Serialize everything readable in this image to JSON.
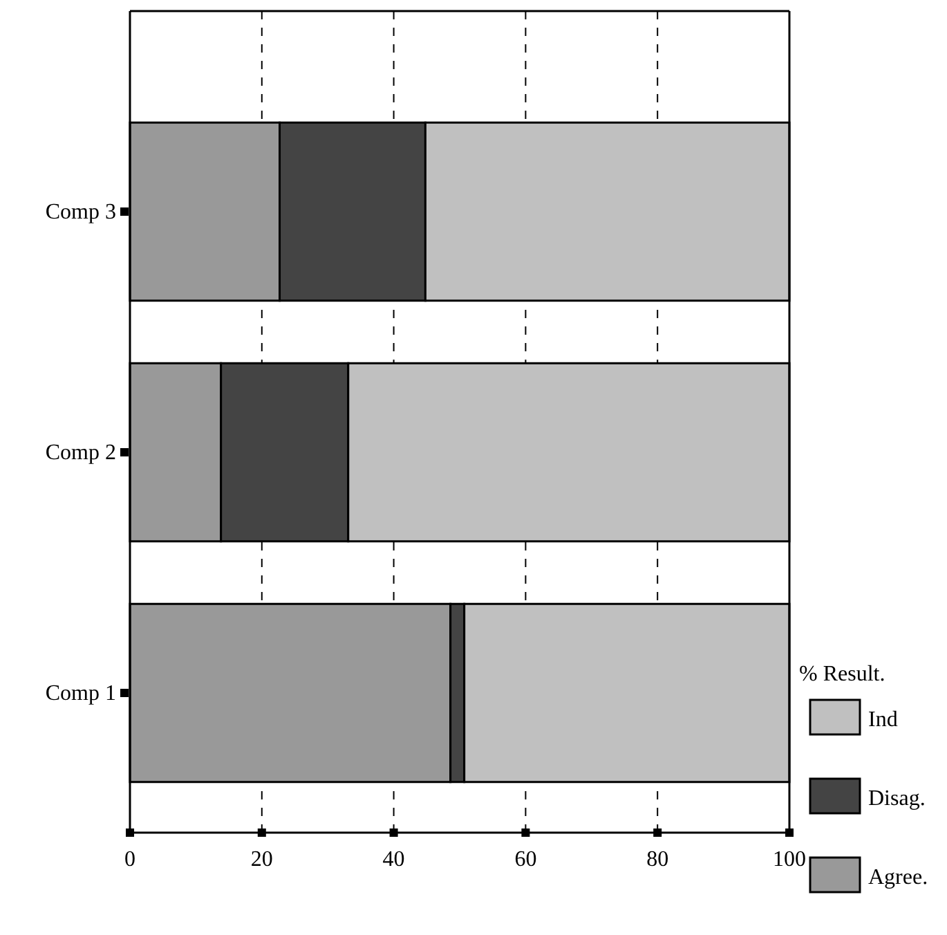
{
  "chart_data": {
    "type": "bar",
    "orientation": "horizontal",
    "stacked": true,
    "categories": [
      "Comp 3",
      "Comp 2",
      "Comp 1"
    ],
    "series": [
      {
        "name": "Agree.",
        "color": "#999999",
        "values": [
          22.7,
          13.8,
          48.6
        ]
      },
      {
        "name": "Disag.",
        "color": "#444444",
        "values": [
          22.1,
          19.3,
          2.1
        ]
      },
      {
        "name": "Ind",
        "color": "#c0c0c0",
        "values": [
          55.2,
          66.9,
          49.3
        ]
      }
    ],
    "legend_title": "% Result.",
    "legend": "right",
    "xlim": [
      0,
      100
    ],
    "xticks": [
      0,
      20,
      40,
      60,
      80,
      100
    ],
    "grid": "x"
  }
}
